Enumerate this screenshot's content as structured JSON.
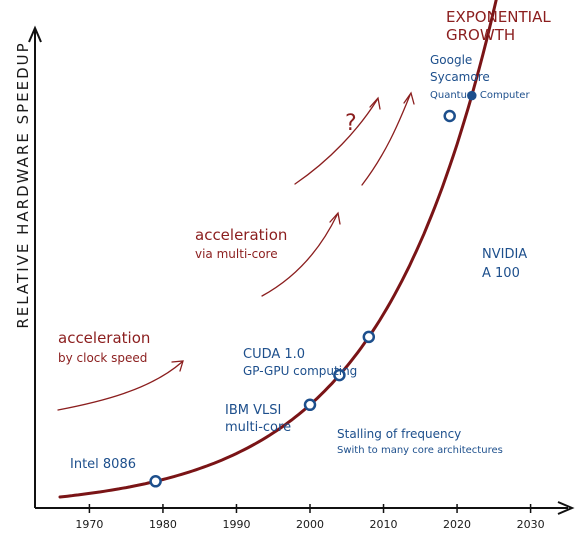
{
  "chart_data": {
    "type": "line",
    "title": "",
    "xlabel": "",
    "ylabel": "RELATIVE HARDWARE SPEEDUP",
    "xlim": [
      1966,
      2034
    ],
    "x_ticks": [
      "1970",
      "1980",
      "1990",
      "2000",
      "2010",
      "2020",
      "2030"
    ],
    "colors": {
      "curve": "#7a1416",
      "milestones": "#1d4f8c",
      "annotations": "#8b1e1e"
    },
    "curve_label": [
      "EXPONENTIAL",
      "GROWTH"
    ],
    "milestones": [
      {
        "year": 1979,
        "label": [
          "Intel 8086"
        ]
      },
      {
        "year": 2000,
        "label": [
          "IBM VLSI",
          "multi-core"
        ]
      },
      {
        "year": 2004,
        "label": [
          "Stalling of frequency",
          "Swith to many core architectures"
        ]
      },
      {
        "year": 2008,
        "label": [
          "CUDA 1.0",
          "GP-GPU computing"
        ]
      },
      {
        "year": 2022,
        "label": [
          "NVIDIA",
          "A 100"
        ]
      },
      {
        "year": 2019,
        "label": [
          "Google",
          "Sycamore",
          "Quantum Computer"
        ]
      }
    ],
    "phases": [
      {
        "label": [
          "acceleration",
          "by clock speed"
        ]
      },
      {
        "label": [
          "acceleration",
          "via multi-core"
        ]
      },
      {
        "label": [
          "?"
        ]
      }
    ]
  }
}
